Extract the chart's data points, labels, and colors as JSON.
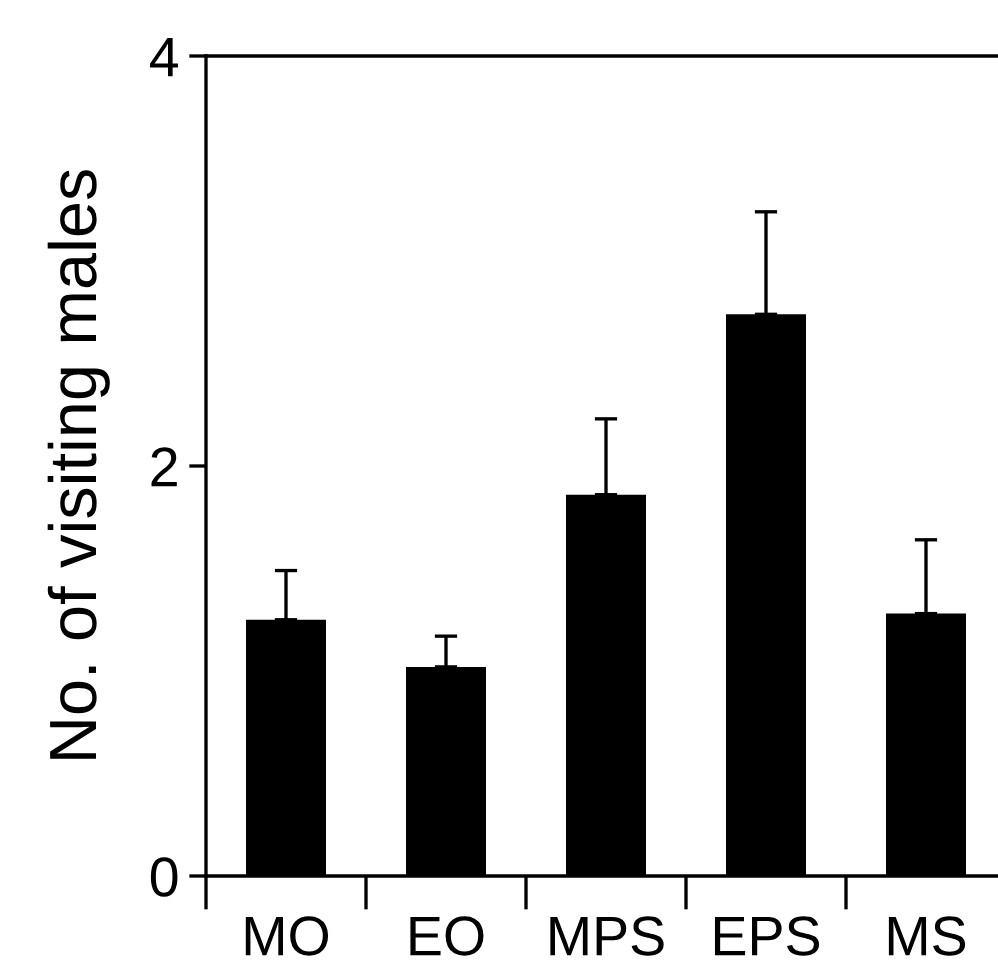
{
  "chart_data": {
    "type": "bar",
    "ylabel": "No. of visiting males",
    "categories": [
      "MO",
      "EO",
      "MPS",
      "EPS",
      "MS"
    ],
    "values": [
      1.25,
      1.02,
      1.86,
      2.74,
      1.28
    ],
    "errors": [
      [
        1.25,
        1.49
      ],
      [
        1.02,
        1.17
      ],
      [
        1.86,
        2.23
      ],
      [
        2.74,
        3.24
      ],
      [
        1.28,
        1.64
      ]
    ],
    "color": "#000000",
    "ylim": [
      0,
      4
    ],
    "yticks": [
      0,
      2,
      4
    ],
    "grid": false,
    "legend": false
  }
}
